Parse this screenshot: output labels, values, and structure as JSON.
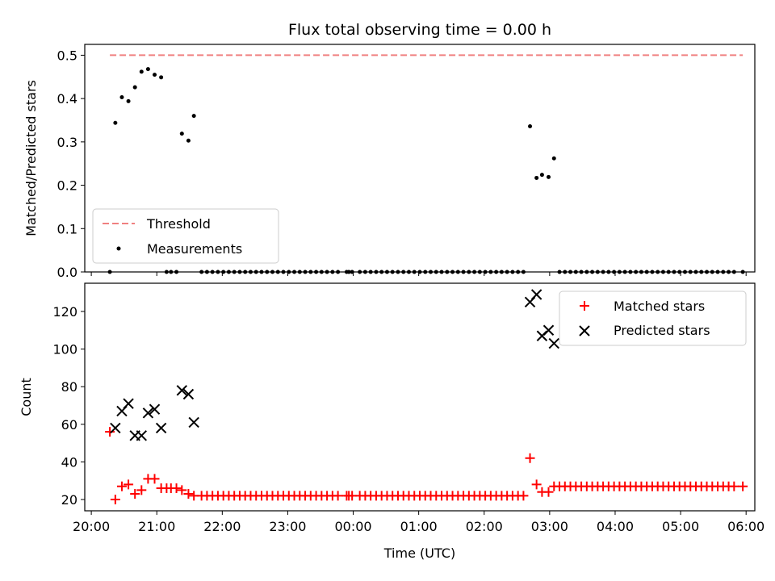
{
  "chart_data": [
    {
      "type": "scatter",
      "title": "Flux total observing time = 0.00 h",
      "xlabel": "",
      "ylabel": "Matched/Predicted stars",
      "ylim": [
        0,
        0.525
      ],
      "yticks": [
        0.0,
        0.1,
        0.2,
        0.3,
        0.4,
        0.5
      ],
      "ytick_labels": [
        "0.0",
        "0.1",
        "0.2",
        "0.3",
        "0.4",
        "0.5"
      ],
      "legend_position": "lower-left",
      "threshold": {
        "name": "Threshold",
        "value": 0.5,
        "x_start": "20:17",
        "x_end": "05:57",
        "color": "#f08080"
      },
      "measurements": {
        "name": "Measurements",
        "color": "#000000",
        "points": [
          [
            "20:17",
            0.0
          ],
          [
            "20:22",
            0.344
          ],
          [
            "20:28",
            0.403
          ],
          [
            "20:34",
            0.394
          ],
          [
            "20:40",
            0.426
          ],
          [
            "20:46",
            0.462
          ],
          [
            "20:52",
            0.468
          ],
          [
            "20:58",
            0.455
          ],
          [
            "21:04",
            0.449
          ],
          [
            "21:09",
            0.0
          ],
          [
            "21:13",
            0.0
          ],
          [
            "21:18",
            0.0
          ],
          [
            "21:23",
            0.319
          ],
          [
            "21:29",
            0.303
          ],
          [
            "21:34",
            0.36
          ],
          [
            "21:41",
            0.0
          ],
          [
            "21:46",
            0.0
          ],
          [
            "21:51",
            0.0
          ],
          [
            "21:56",
            0.0
          ],
          [
            "22:01",
            0.0
          ],
          [
            "22:06",
            0.0
          ],
          [
            "22:11",
            0.0
          ],
          [
            "22:16",
            0.0
          ],
          [
            "22:21",
            0.0
          ],
          [
            "22:26",
            0.0
          ],
          [
            "22:31",
            0.0
          ],
          [
            "22:36",
            0.0
          ],
          [
            "22:41",
            0.0
          ],
          [
            "22:46",
            0.0
          ],
          [
            "22:51",
            0.0
          ],
          [
            "22:56",
            0.0
          ],
          [
            "23:01",
            0.0
          ],
          [
            "23:06",
            0.0
          ],
          [
            "23:11",
            0.0
          ],
          [
            "23:16",
            0.0
          ],
          [
            "23:21",
            0.0
          ],
          [
            "23:26",
            0.0
          ],
          [
            "23:31",
            0.0
          ],
          [
            "23:36",
            0.0
          ],
          [
            "23:41",
            0.0
          ],
          [
            "23:46",
            0.0
          ],
          [
            "23:54",
            0.0
          ],
          [
            "23:56",
            0.0
          ],
          [
            "23:59",
            0.0
          ],
          [
            "00:06",
            0.0
          ],
          [
            "00:11",
            0.0
          ],
          [
            "00:16",
            0.0
          ],
          [
            "00:21",
            0.0
          ],
          [
            "00:26",
            0.0
          ],
          [
            "00:31",
            0.0
          ],
          [
            "00:36",
            0.0
          ],
          [
            "00:41",
            0.0
          ],
          [
            "00:46",
            0.0
          ],
          [
            "00:51",
            0.0
          ],
          [
            "00:56",
            0.0
          ],
          [
            "01:01",
            0.0
          ],
          [
            "01:06",
            0.0
          ],
          [
            "01:11",
            0.0
          ],
          [
            "01:16",
            0.0
          ],
          [
            "01:21",
            0.0
          ],
          [
            "01:26",
            0.0
          ],
          [
            "01:31",
            0.0
          ],
          [
            "01:36",
            0.0
          ],
          [
            "01:41",
            0.0
          ],
          [
            "01:46",
            0.0
          ],
          [
            "01:51",
            0.0
          ],
          [
            "01:56",
            0.0
          ],
          [
            "02:01",
            0.0
          ],
          [
            "02:06",
            0.0
          ],
          [
            "02:11",
            0.0
          ],
          [
            "02:16",
            0.0
          ],
          [
            "02:21",
            0.0
          ],
          [
            "02:26",
            0.0
          ],
          [
            "02:31",
            0.0
          ],
          [
            "02:36",
            0.0
          ],
          [
            "02:42",
            0.336
          ],
          [
            "02:48",
            0.217
          ],
          [
            "02:53",
            0.224
          ],
          [
            "02:59",
            0.219
          ],
          [
            "03:04",
            0.262
          ],
          [
            "03:09",
            0.0
          ],
          [
            "03:14",
            0.0
          ],
          [
            "03:19",
            0.0
          ],
          [
            "03:24",
            0.0
          ],
          [
            "03:29",
            0.0
          ],
          [
            "03:34",
            0.0
          ],
          [
            "03:39",
            0.0
          ],
          [
            "03:44",
            0.0
          ],
          [
            "03:49",
            0.0
          ],
          [
            "03:54",
            0.0
          ],
          [
            "03:59",
            0.0
          ],
          [
            "04:04",
            0.0
          ],
          [
            "04:09",
            0.0
          ],
          [
            "04:14",
            0.0
          ],
          [
            "04:19",
            0.0
          ],
          [
            "04:24",
            0.0
          ],
          [
            "04:29",
            0.0
          ],
          [
            "04:34",
            0.0
          ],
          [
            "04:39",
            0.0
          ],
          [
            "04:44",
            0.0
          ],
          [
            "04:49",
            0.0
          ],
          [
            "04:54",
            0.0
          ],
          [
            "04:59",
            0.0
          ],
          [
            "05:04",
            0.0
          ],
          [
            "05:09",
            0.0
          ],
          [
            "05:14",
            0.0
          ],
          [
            "05:19",
            0.0
          ],
          [
            "05:24",
            0.0
          ],
          [
            "05:29",
            0.0
          ],
          [
            "05:34",
            0.0
          ],
          [
            "05:39",
            0.0
          ],
          [
            "05:44",
            0.0
          ],
          [
            "05:49",
            0.0
          ],
          [
            "05:57",
            0.0
          ]
        ]
      }
    },
    {
      "type": "scatter",
      "title": "",
      "xlabel": "Time (UTC)",
      "ylabel": "Count",
      "ylim": [
        14,
        135
      ],
      "yticks": [
        20,
        40,
        60,
        80,
        100,
        120
      ],
      "ytick_labels": [
        "20",
        "40",
        "60",
        "80",
        "100",
        "120"
      ],
      "xlim": [
        "19:54",
        "06:08"
      ],
      "xticks": [
        "20:00",
        "21:00",
        "22:00",
        "23:00",
        "00:00",
        "01:00",
        "02:00",
        "03:00",
        "04:00",
        "05:00",
        "06:00"
      ],
      "xtick_labels": [
        "20:00",
        "21:00",
        "22:00",
        "23:00",
        "00:00",
        "01:00",
        "02:00",
        "03:00",
        "04:00",
        "05:00",
        "06:00"
      ],
      "legend_position": "top-right",
      "series": [
        {
          "name": "Matched stars",
          "marker": "plus",
          "color": "#ff0000",
          "points": [
            [
              "20:17",
              56
            ],
            [
              "20:22",
              20
            ],
            [
              "20:28",
              27
            ],
            [
              "20:34",
              28
            ],
            [
              "20:40",
              23
            ],
            [
              "20:46",
              25
            ],
            [
              "20:52",
              31
            ],
            [
              "20:58",
              31
            ],
            [
              "21:04",
              26
            ],
            [
              "21:09",
              26
            ],
            [
              "21:13",
              26
            ],
            [
              "21:18",
              26
            ],
            [
              "21:23",
              25
            ],
            [
              "21:29",
              23
            ],
            [
              "21:34",
              22
            ],
            [
              "21:41",
              22
            ],
            [
              "21:46",
              22
            ],
            [
              "21:51",
              22
            ],
            [
              "21:56",
              22
            ],
            [
              "22:01",
              22
            ],
            [
              "22:06",
              22
            ],
            [
              "22:11",
              22
            ],
            [
              "22:16",
              22
            ],
            [
              "22:21",
              22
            ],
            [
              "22:26",
              22
            ],
            [
              "22:31",
              22
            ],
            [
              "22:36",
              22
            ],
            [
              "22:41",
              22
            ],
            [
              "22:46",
              22
            ],
            [
              "22:51",
              22
            ],
            [
              "22:56",
              22
            ],
            [
              "23:01",
              22
            ],
            [
              "23:06",
              22
            ],
            [
              "23:11",
              22
            ],
            [
              "23:16",
              22
            ],
            [
              "23:21",
              22
            ],
            [
              "23:26",
              22
            ],
            [
              "23:31",
              22
            ],
            [
              "23:36",
              22
            ],
            [
              "23:41",
              22
            ],
            [
              "23:46",
              22
            ],
            [
              "23:54",
              22
            ],
            [
              "23:56",
              22
            ],
            [
              "23:59",
              22
            ],
            [
              "00:06",
              22
            ],
            [
              "00:11",
              22
            ],
            [
              "00:16",
              22
            ],
            [
              "00:21",
              22
            ],
            [
              "00:26",
              22
            ],
            [
              "00:31",
              22
            ],
            [
              "00:36",
              22
            ],
            [
              "00:41",
              22
            ],
            [
              "00:46",
              22
            ],
            [
              "00:51",
              22
            ],
            [
              "00:56",
              22
            ],
            [
              "01:01",
              22
            ],
            [
              "01:06",
              22
            ],
            [
              "01:11",
              22
            ],
            [
              "01:16",
              22
            ],
            [
              "01:21",
              22
            ],
            [
              "01:26",
              22
            ],
            [
              "01:31",
              22
            ],
            [
              "01:36",
              22
            ],
            [
              "01:41",
              22
            ],
            [
              "01:46",
              22
            ],
            [
              "01:51",
              22
            ],
            [
              "01:56",
              22
            ],
            [
              "02:01",
              22
            ],
            [
              "02:06",
              22
            ],
            [
              "02:11",
              22
            ],
            [
              "02:16",
              22
            ],
            [
              "02:21",
              22
            ],
            [
              "02:26",
              22
            ],
            [
              "02:31",
              22
            ],
            [
              "02:36",
              22
            ],
            [
              "02:42",
              42
            ],
            [
              "02:48",
              28
            ],
            [
              "02:53",
              24
            ],
            [
              "02:59",
              24
            ],
            [
              "03:04",
              27
            ],
            [
              "03:09",
              27
            ],
            [
              "03:14",
              27
            ],
            [
              "03:19",
              27
            ],
            [
              "03:24",
              27
            ],
            [
              "03:29",
              27
            ],
            [
              "03:34",
              27
            ],
            [
              "03:39",
              27
            ],
            [
              "03:44",
              27
            ],
            [
              "03:49",
              27
            ],
            [
              "03:54",
              27
            ],
            [
              "03:59",
              27
            ],
            [
              "04:04",
              27
            ],
            [
              "04:09",
              27
            ],
            [
              "04:14",
              27
            ],
            [
              "04:19",
              27
            ],
            [
              "04:24",
              27
            ],
            [
              "04:29",
              27
            ],
            [
              "04:34",
              27
            ],
            [
              "04:39",
              27
            ],
            [
              "04:44",
              27
            ],
            [
              "04:49",
              27
            ],
            [
              "04:54",
              27
            ],
            [
              "04:59",
              27
            ],
            [
              "05:04",
              27
            ],
            [
              "05:09",
              27
            ],
            [
              "05:14",
              27
            ],
            [
              "05:19",
              27
            ],
            [
              "05:24",
              27
            ],
            [
              "05:29",
              27
            ],
            [
              "05:34",
              27
            ],
            [
              "05:39",
              27
            ],
            [
              "05:44",
              27
            ],
            [
              "05:49",
              27
            ],
            [
              "05:57",
              27
            ]
          ]
        },
        {
          "name": "Predicted stars",
          "marker": "x",
          "color": "#000000",
          "points": [
            [
              "20:22",
              58
            ],
            [
              "20:28",
              67
            ],
            [
              "20:34",
              71
            ],
            [
              "20:40",
              54
            ],
            [
              "20:46",
              54
            ],
            [
              "20:52",
              66
            ],
            [
              "20:58",
              68
            ],
            [
              "21:04",
              58
            ],
            [
              "21:23",
              78
            ],
            [
              "21:29",
              76
            ],
            [
              "21:34",
              61
            ],
            [
              "02:42",
              125
            ],
            [
              "02:48",
              129
            ],
            [
              "02:53",
              107
            ],
            [
              "02:59",
              110
            ],
            [
              "03:04",
              103
            ]
          ]
        }
      ]
    }
  ]
}
